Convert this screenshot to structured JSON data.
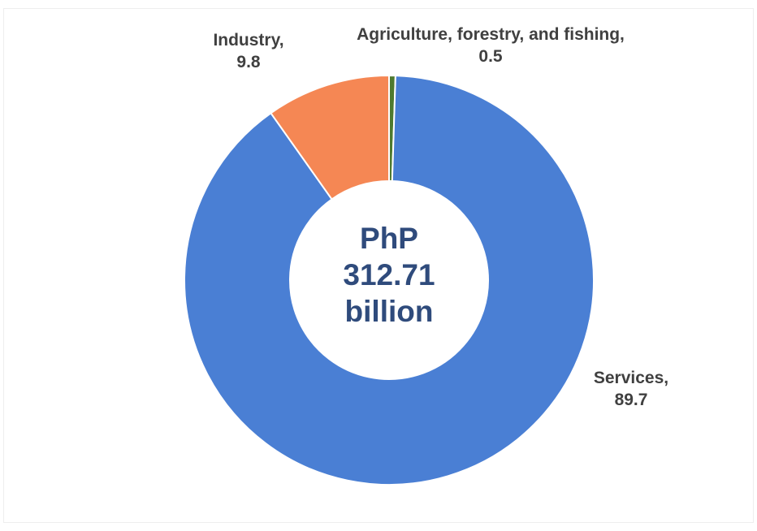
{
  "chart_data": {
    "type": "pie",
    "donut": true,
    "center_text": [
      "PhP",
      "312.71",
      "billion"
    ],
    "slices": [
      {
        "label": "Agriculture, forestry, and fishing",
        "value": 0.5,
        "color": "#4E7A2F",
        "label_lines": [
          "Agriculture, forestry, and fishing,",
          "0.5"
        ]
      },
      {
        "label": "Services",
        "value": 89.7,
        "color": "#4A7FD4",
        "label_lines": [
          "Services,",
          "89.7"
        ]
      },
      {
        "label": "Industry",
        "value": 9.8,
        "color": "#F58754",
        "label_lines": [
          "Industry,",
          "9.8"
        ]
      }
    ],
    "start_angle_deg": 0,
    "direction": "clockwise",
    "legend": "none"
  }
}
